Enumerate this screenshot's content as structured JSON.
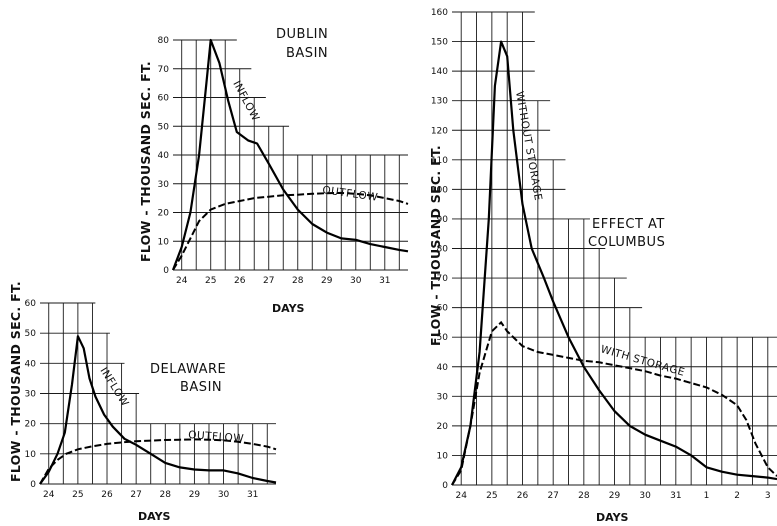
{
  "chart_data": [
    {
      "type": "line",
      "title": "Dublin Basin",
      "title_lines": [
        "DUBLIN",
        "BASIN"
      ],
      "ylabel": "FLOW - THOUSAND SEC. FT.",
      "xlabel": "DAYS",
      "x_ticks": [
        "24",
        "25",
        "26",
        "27",
        "28",
        "29",
        "30",
        "31"
      ],
      "y_ticks": [
        "0",
        "10",
        "20",
        "30",
        "40",
        "50",
        "60",
        "70",
        "80"
      ],
      "xlim": [
        23.7,
        31.8
      ],
      "ylim": [
        0,
        80
      ],
      "series": [
        {
          "name": "INFLOW",
          "style": "solid",
          "x": [
            23.7,
            24.0,
            24.3,
            24.6,
            24.85,
            25.0,
            25.3,
            25.6,
            25.9,
            26.3,
            26.6,
            27.0,
            27.5,
            28.0,
            28.5,
            29.0,
            29.5,
            30.0,
            30.5,
            31.0,
            31.5,
            31.8
          ],
          "y": [
            0,
            8,
            20,
            40,
            65,
            80,
            72,
            59,
            48,
            45,
            44,
            37,
            28,
            21,
            16,
            13,
            11,
            10.5,
            9,
            8,
            7,
            6.5
          ]
        },
        {
          "name": "OUTFLOW",
          "style": "dashed",
          "x": [
            23.7,
            24.0,
            24.3,
            24.6,
            25.0,
            25.5,
            26.0,
            26.5,
            27.0,
            27.5,
            28.0,
            28.5,
            29.0,
            29.5,
            30.0,
            30.5,
            31.0,
            31.5,
            31.8
          ],
          "y": [
            0,
            5,
            11,
            17,
            21,
            23,
            24,
            25,
            25.5,
            26,
            26.2,
            26.5,
            26.7,
            26.8,
            26.5,
            26,
            25,
            24,
            23
          ]
        }
      ],
      "series_labels": [
        "INFLOW",
        "OUTFLOW"
      ],
      "grid": true
    },
    {
      "type": "line",
      "title": "Delaware Basin",
      "title_lines": [
        "DELAWARE",
        "BASIN"
      ],
      "ylabel": "FLOW - THOUSAND SEC. FT.",
      "xlabel": "DAYS",
      "x_ticks": [
        "24",
        "25",
        "26",
        "27",
        "28",
        "29",
        "30",
        "31"
      ],
      "y_ticks": [
        "0",
        "10",
        "20",
        "30",
        "40",
        "50",
        "60"
      ],
      "xlim": [
        23.7,
        31.8
      ],
      "ylim": [
        0,
        60
      ],
      "series": [
        {
          "name": "INFLOW",
          "style": "solid",
          "x": [
            23.7,
            24.0,
            24.3,
            24.55,
            24.8,
            25.0,
            25.2,
            25.4,
            25.6,
            25.9,
            26.2,
            26.6,
            27.0,
            27.5,
            28.0,
            28.5,
            29.0,
            29.5,
            30.0,
            30.5,
            31.0,
            31.5,
            31.8
          ],
          "y": [
            0,
            4,
            10,
            17,
            33,
            49,
            45,
            35,
            29,
            23,
            19,
            15,
            13,
            10,
            7,
            5.5,
            4.8,
            4.5,
            4.5,
            3.5,
            2,
            1,
            0.5
          ]
        },
        {
          "name": "OUTFLOW",
          "style": "dashed",
          "x": [
            23.7,
            24.0,
            24.3,
            24.6,
            25.0,
            25.5,
            26.0,
            26.5,
            27.0,
            27.5,
            28.0,
            28.5,
            29.0,
            29.5,
            30.0,
            30.5,
            31.0,
            31.5,
            31.8
          ],
          "y": [
            0,
            5,
            8,
            10,
            11.5,
            12.5,
            13.3,
            13.8,
            14.2,
            14.4,
            14.6,
            14.7,
            14.8,
            14.7,
            14.5,
            14.0,
            13.3,
            12.4,
            11.5
          ]
        }
      ],
      "series_labels": [
        "INFLOW",
        "OUTFLOW"
      ],
      "grid": true
    },
    {
      "type": "line",
      "title": "Effect at Columbus",
      "title_lines": [
        "EFFECT AT",
        "COLUMBUS"
      ],
      "ylabel": "FLOW - THOUSAND SEC. FT.",
      "xlabel": "DAYS",
      "x_ticks": [
        "24",
        "25",
        "26",
        "27",
        "28",
        "29",
        "30",
        "31",
        "1",
        "2",
        "3"
      ],
      "y_ticks": [
        "0",
        "10",
        "20",
        "30",
        "40",
        "50",
        "60",
        "70",
        "80",
        "90",
        "100",
        "110",
        "120",
        "130",
        "140",
        "150",
        "160"
      ],
      "xlim": [
        23.7,
        34.3
      ],
      "ylim": [
        0,
        160
      ],
      "series": [
        {
          "name": "WITHOUT STORAGE",
          "style": "solid",
          "x": [
            23.7,
            24.0,
            24.3,
            24.6,
            24.9,
            25.1,
            25.3,
            25.5,
            25.7,
            26.0,
            26.3,
            26.7,
            27.0,
            27.5,
            28.0,
            28.5,
            29.0,
            29.5,
            30.0,
            30.5,
            31.0,
            31.5,
            32.0,
            32.5,
            33.0,
            33.5,
            34.0,
            34.3
          ],
          "y": [
            0,
            6,
            20,
            45,
            90,
            135,
            150,
            145,
            120,
            95,
            80,
            70,
            62,
            50,
            40,
            32,
            25,
            20,
            17,
            15,
            13,
            10,
            6,
            4.5,
            3.5,
            3,
            2.5,
            2
          ]
        },
        {
          "name": "WITH STORAGE",
          "style": "dashed",
          "x": [
            23.7,
            24.0,
            24.3,
            24.6,
            25.0,
            25.3,
            25.5,
            26.0,
            26.5,
            27.0,
            27.5,
            28.0,
            28.5,
            29.0,
            29.5,
            30.0,
            30.5,
            31.0,
            31.5,
            32.0,
            32.5,
            33.0,
            33.3,
            33.6,
            34.0,
            34.3
          ],
          "y": [
            0,
            5,
            20,
            38,
            52,
            55,
            52,
            47,
            45,
            44,
            43,
            42,
            41.5,
            40.5,
            39.5,
            38.5,
            37,
            36,
            34.5,
            33,
            30.5,
            27,
            22,
            14,
            6,
            3
          ]
        }
      ],
      "series_labels": [
        "WITHOUT STORAGE",
        "WITH STORAGE"
      ],
      "grid": true
    }
  ]
}
